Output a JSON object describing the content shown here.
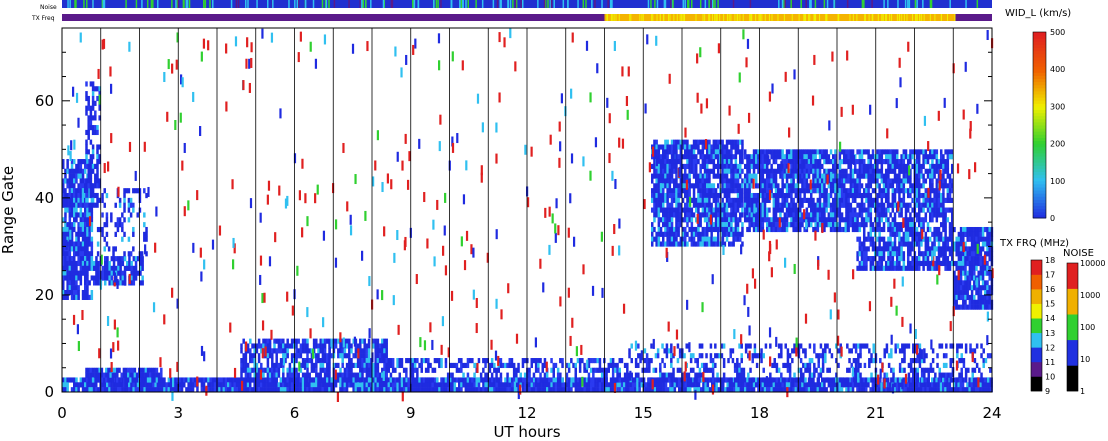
{
  "chart_data": {
    "type": "heatmap",
    "xlabel": "UT hours",
    "ylabel": "Range Gate",
    "xlim": [
      0,
      24
    ],
    "ylim": [
      0,
      75
    ],
    "x_ticks": [
      "0",
      "3",
      "6",
      "9",
      "12",
      "15",
      "18",
      "21",
      "24"
    ],
    "y_ticks": [
      "0",
      "20",
      "40",
      "60"
    ],
    "x_tick_values": [
      0,
      3,
      6,
      9,
      12,
      15,
      18,
      21,
      24
    ],
    "y_tick_values": [
      0,
      20,
      40,
      60
    ],
    "hour_lines": [
      1,
      2,
      3,
      4,
      5,
      6,
      7,
      8,
      9,
      10,
      11,
      12,
      13,
      14,
      15,
      16,
      17,
      18,
      19,
      20,
      21,
      22,
      23
    ],
    "strip_labels": {
      "noise": "Noise",
      "txfreq": "TX Freq"
    },
    "txfreq_strip": [
      {
        "start": 0,
        "end": 14,
        "color": "#5a1a8a"
      },
      {
        "start": 14,
        "end": 23.05,
        "color": "#f4b400"
      },
      {
        "start": 23.05,
        "end": 24,
        "color": "#5a1a8a"
      }
    ],
    "scatter_regions": [
      {
        "name": "low-band",
        "x": [
          0,
          24
        ],
        "y": [
          0,
          3
        ],
        "density": 0.95
      },
      {
        "name": "low-echo-early",
        "x": [
          0.6,
          2.6
        ],
        "y": [
          2,
          5
        ],
        "density": 0.85
      },
      {
        "name": "low-echo-morning",
        "x": [
          4.6,
          8.4
        ],
        "y": [
          2,
          11
        ],
        "density": 0.75
      },
      {
        "name": "low-echo-day",
        "x": [
          8.4,
          14.5
        ],
        "y": [
          2,
          7
        ],
        "density": 0.5
      },
      {
        "name": "low-echo-evening",
        "x": [
          14.5,
          24
        ],
        "y": [
          2,
          10
        ],
        "density": 0.35
      },
      {
        "name": "night-patch",
        "x": [
          0,
          0.8
        ],
        "y": [
          19,
          48
        ],
        "density": 0.85
      },
      {
        "name": "night-spike",
        "x": [
          0.6,
          1.0
        ],
        "y": [
          38,
          64
        ],
        "density": 0.6
      },
      {
        "name": "night-tail",
        "x": [
          0.8,
          2.1
        ],
        "y": [
          22,
          28
        ],
        "density": 0.8
      },
      {
        "name": "night-diag",
        "x": [
          0.9,
          2.2
        ],
        "y": [
          28,
          42
        ],
        "density": 0.25
      },
      {
        "name": "evening-arc-1",
        "x": [
          15.2,
          17.6
        ],
        "y": [
          30,
          52
        ],
        "density": 0.85
      },
      {
        "name": "evening-arc-2",
        "x": [
          17.6,
          20.5
        ],
        "y": [
          33,
          50
        ],
        "density": 0.85
      },
      {
        "name": "evening-arc-3",
        "x": [
          20.5,
          23.0
        ],
        "y": [
          25,
          50
        ],
        "density": 0.8
      },
      {
        "name": "late-patch",
        "x": [
          23.0,
          24
        ],
        "y": [
          17,
          34
        ],
        "density": 0.85
      }
    ],
    "colorbars": [
      {
        "name": "WID_L (km/s)",
        "min": 0,
        "max": 500,
        "ticks": [
          "0",
          "100",
          "200",
          "300",
          "400",
          "500"
        ]
      },
      {
        "name": "TX FRQ (MHz)",
        "ticks": [
          "9",
          "10",
          "11",
          "12",
          "13",
          "14",
          "15",
          "16",
          "17",
          "18"
        ],
        "colors": [
          "#000000",
          "#5a1a8a",
          "#2030e0",
          "#30c0f0",
          "#30d030",
          "#f0f000",
          "#f0b000",
          "#f06000",
          "#e02020"
        ]
      },
      {
        "name": "NOISE",
        "ticks": [
          "1",
          "10",
          "100",
          "1000",
          "10000"
        ],
        "colors": [
          "#000000",
          "#2030e0",
          "#30d030",
          "#f0b000",
          "#e02020"
        ]
      }
    ]
  },
  "colors": {
    "echo_main": "#1f2be0",
    "echo_light": "#30c0f0",
    "speckle_red": "#e02020",
    "noise_strip_base": "#2030d0"
  }
}
